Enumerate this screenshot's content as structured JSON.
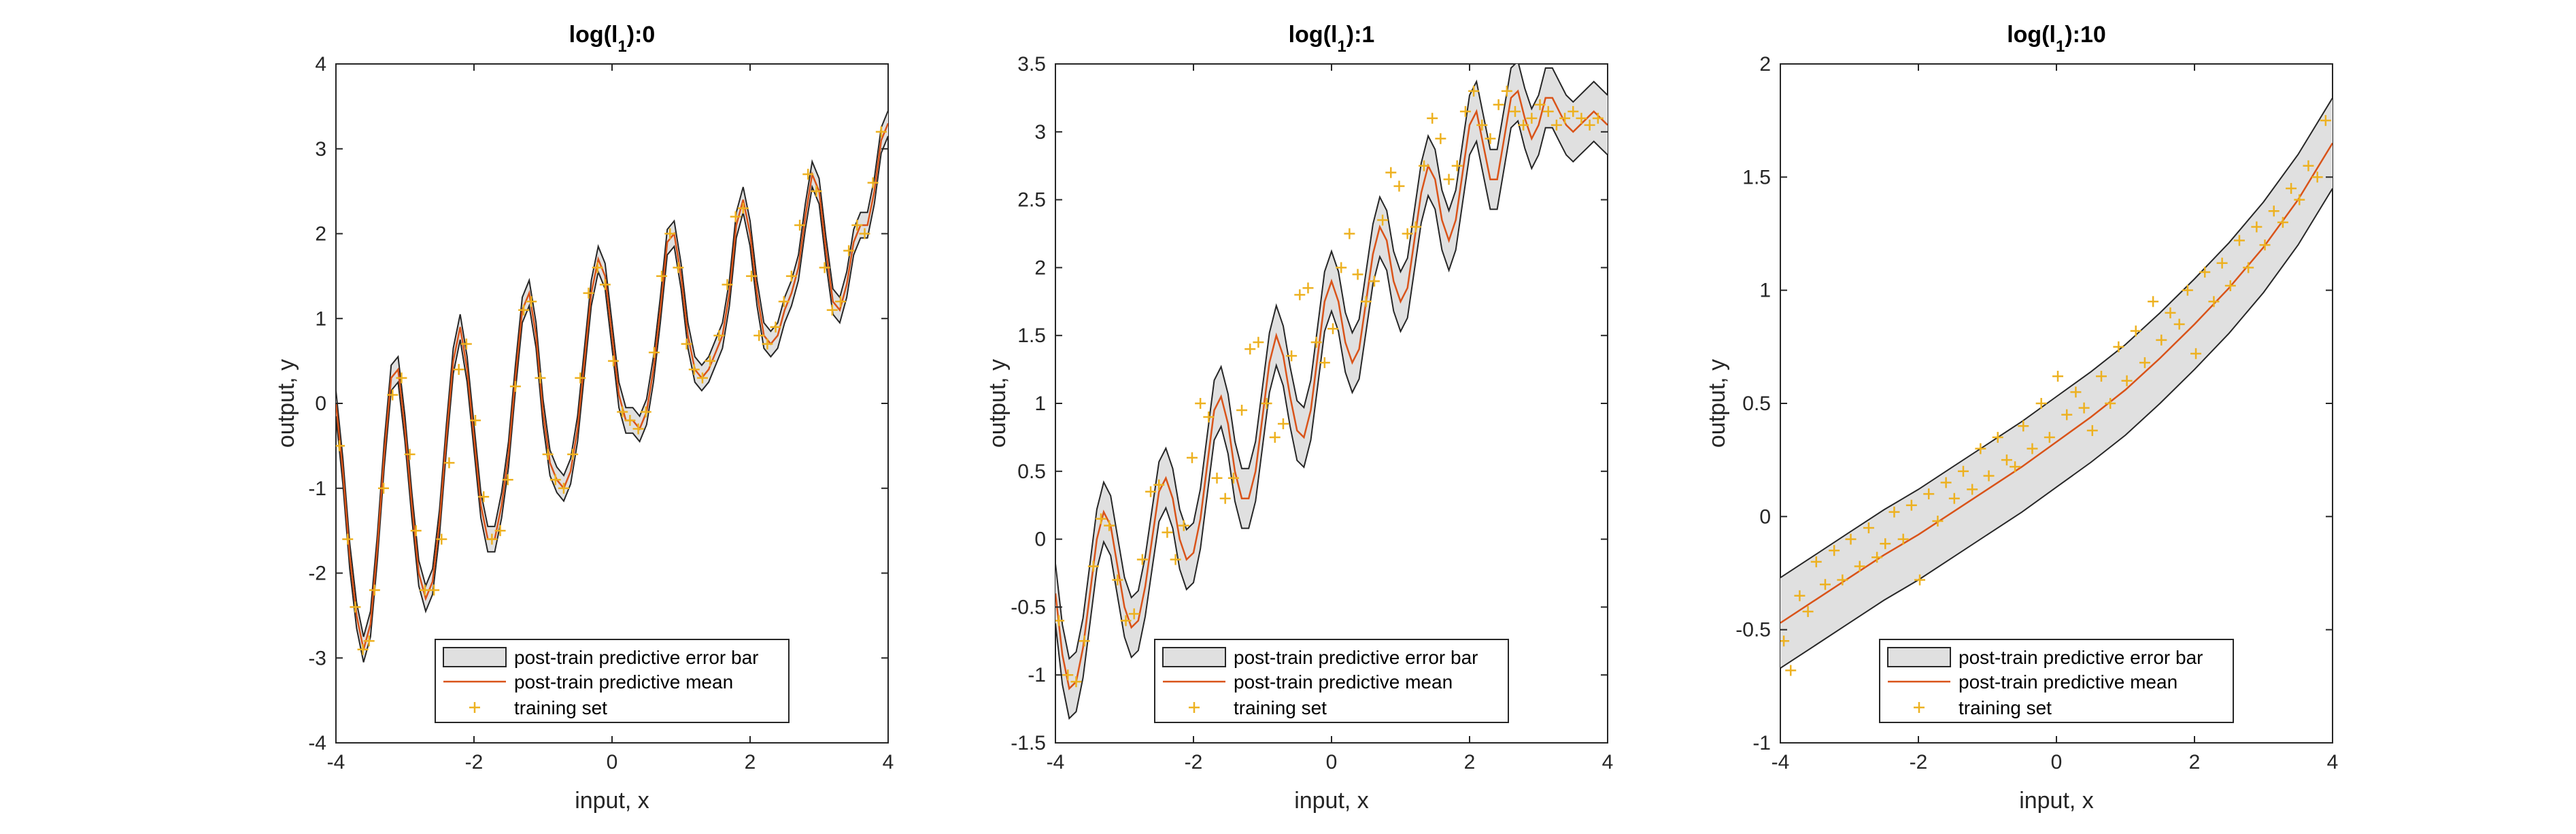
{
  "figure": {
    "legend": {
      "errorbar_label": "post-train predictive error bar",
      "mean_label": "post-train predictive mean",
      "training_label": "training set",
      "placement": "bottom-center"
    }
  },
  "colors": {
    "band_fill": "#e0e0e0",
    "band_edge": "#262626",
    "mean": "#d95319",
    "training": "#edb120",
    "axes": "#262626"
  },
  "chart_data": [
    {
      "type": "line",
      "title_prefix": "log(l",
      "title_sub": "1",
      "title_suffix": "):0",
      "xlabel": "input, x",
      "ylabel": "output, y",
      "xlim": [
        -4,
        4
      ],
      "ylim": [
        -4,
        4
      ],
      "xticks": [
        -4,
        -2,
        0,
        2,
        4
      ],
      "yticks": [
        -4,
        -3,
        -2,
        -1,
        0,
        1,
        2,
        3,
        4
      ],
      "grid": false,
      "error_band_halfwidth": 0.15,
      "series": [
        {
          "name": "post-train predictive mean",
          "x": [
            -4.0,
            -3.9,
            -3.8,
            -3.7,
            -3.6,
            -3.5,
            -3.4,
            -3.3,
            -3.2,
            -3.1,
            -3.0,
            -2.9,
            -2.8,
            -2.7,
            -2.6,
            -2.5,
            -2.4,
            -2.3,
            -2.2,
            -2.1,
            -2.0,
            -1.9,
            -1.8,
            -1.7,
            -1.6,
            -1.5,
            -1.4,
            -1.3,
            -1.2,
            -1.1,
            -1.0,
            -0.9,
            -0.8,
            -0.7,
            -0.6,
            -0.5,
            -0.4,
            -0.3,
            -0.2,
            -0.1,
            0.0,
            0.1,
            0.2,
            0.3,
            0.4,
            0.5,
            0.6,
            0.7,
            0.8,
            0.9,
            1.0,
            1.1,
            1.2,
            1.3,
            1.4,
            1.5,
            1.6,
            1.7,
            1.8,
            1.9,
            2.0,
            2.1,
            2.2,
            2.3,
            2.4,
            2.5,
            2.6,
            2.7,
            2.8,
            2.9,
            3.0,
            3.1,
            3.2,
            3.3,
            3.4,
            3.5,
            3.6,
            3.7,
            3.8,
            3.9,
            4.0
          ],
          "y": [
            0.0,
            -0.8,
            -1.8,
            -2.5,
            -2.9,
            -2.6,
            -1.7,
            -0.6,
            0.3,
            0.4,
            -0.3,
            -1.2,
            -2.0,
            -2.3,
            -2.1,
            -1.4,
            -0.4,
            0.5,
            0.9,
            0.4,
            -0.4,
            -1.2,
            -1.6,
            -1.6,
            -1.2,
            -0.6,
            0.3,
            1.1,
            1.3,
            0.8,
            -0.1,
            -0.7,
            -0.9,
            -1.0,
            -0.8,
            -0.3,
            0.5,
            1.3,
            1.7,
            1.5,
            0.8,
            0.1,
            -0.2,
            -0.2,
            -0.3,
            -0.1,
            0.4,
            1.1,
            1.9,
            2.0,
            1.5,
            0.8,
            0.4,
            0.3,
            0.4,
            0.6,
            0.8,
            1.3,
            2.1,
            2.4,
            2.0,
            1.3,
            0.8,
            0.7,
            0.8,
            1.1,
            1.3,
            1.6,
            2.2,
            2.7,
            2.5,
            1.8,
            1.2,
            1.1,
            1.4,
            1.9,
            2.1,
            2.1,
            2.5,
            3.1,
            3.3
          ]
        },
        {
          "name": "training set",
          "x": [
            -3.95,
            -3.83,
            -3.72,
            -3.61,
            -3.52,
            -3.44,
            -3.31,
            -3.18,
            -3.05,
            -2.93,
            -2.84,
            -2.71,
            -2.58,
            -2.47,
            -2.36,
            -2.22,
            -2.11,
            -1.98,
            -1.86,
            -1.74,
            -1.62,
            -1.51,
            -1.4,
            -1.28,
            -1.17,
            -1.04,
            -0.93,
            -0.82,
            -0.7,
            -0.57,
            -0.46,
            -0.34,
            -0.21,
            -0.1,
            0.02,
            0.15,
            0.26,
            0.38,
            0.49,
            0.61,
            0.72,
            0.84,
            0.96,
            1.08,
            1.19,
            1.31,
            1.42,
            1.55,
            1.67,
            1.79,
            1.9,
            2.02,
            2.13,
            2.25,
            2.37,
            2.49,
            2.6,
            2.72,
            2.84,
            2.96,
            3.08,
            3.19,
            3.31,
            3.43,
            3.55,
            3.66,
            3.78,
            3.9
          ],
          "y": [
            -0.5,
            -1.6,
            -2.4,
            -2.9,
            -2.8,
            -2.2,
            -1.0,
            0.1,
            0.3,
            -0.6,
            -1.5,
            -2.2,
            -2.2,
            -1.6,
            -0.7,
            0.4,
            0.7,
            -0.2,
            -1.1,
            -1.6,
            -1.5,
            -0.9,
            0.2,
            1.1,
            1.2,
            0.3,
            -0.6,
            -0.9,
            -1.0,
            -0.6,
            0.3,
            1.3,
            1.6,
            1.4,
            0.5,
            -0.1,
            -0.2,
            -0.3,
            -0.1,
            0.6,
            1.5,
            2.0,
            1.6,
            0.7,
            0.4,
            0.3,
            0.5,
            0.8,
            1.4,
            2.2,
            2.3,
            1.5,
            0.8,
            0.7,
            0.9,
            1.2,
            1.5,
            2.1,
            2.7,
            2.5,
            1.6,
            1.1,
            1.2,
            1.8,
            2.1,
            2.0,
            2.6,
            3.2
          ]
        }
      ]
    },
    {
      "type": "line",
      "title_prefix": "log(l",
      "title_sub": "1",
      "title_suffix": "):1",
      "xlabel": "input, x",
      "ylabel": "output, y",
      "xlim": [
        -4,
        4
      ],
      "ylim": [
        -1.5,
        3.5
      ],
      "xticks": [
        -4,
        -2,
        0,
        2,
        4
      ],
      "yticks": [
        -1.5,
        -1,
        -0.5,
        0,
        0.5,
        1,
        1.5,
        2,
        2.5,
        3,
        3.5
      ],
      "grid": false,
      "error_band_halfwidth": 0.22,
      "series": [
        {
          "name": "post-train predictive mean",
          "x": [
            -4.0,
            -3.9,
            -3.8,
            -3.7,
            -3.6,
            -3.5,
            -3.4,
            -3.3,
            -3.2,
            -3.1,
            -3.0,
            -2.9,
            -2.8,
            -2.7,
            -2.6,
            -2.5,
            -2.4,
            -2.3,
            -2.2,
            -2.1,
            -2.0,
            -1.9,
            -1.8,
            -1.7,
            -1.6,
            -1.5,
            -1.4,
            -1.3,
            -1.2,
            -1.1,
            -1.0,
            -0.9,
            -0.8,
            -0.7,
            -0.6,
            -0.5,
            -0.4,
            -0.3,
            -0.2,
            -0.1,
            0.0,
            0.1,
            0.2,
            0.3,
            0.4,
            0.5,
            0.6,
            0.7,
            0.8,
            0.9,
            1.0,
            1.1,
            1.2,
            1.3,
            1.4,
            1.5,
            1.6,
            1.7,
            1.8,
            1.9,
            2.0,
            2.1,
            2.2,
            2.3,
            2.4,
            2.5,
            2.6,
            2.7,
            2.8,
            2.9,
            3.0,
            3.1,
            3.2,
            3.3,
            3.4,
            3.5,
            3.6,
            3.7,
            3.8,
            3.9,
            4.0
          ],
          "y": [
            -0.4,
            -0.85,
            -1.1,
            -1.05,
            -0.8,
            -0.4,
            0.0,
            0.2,
            0.1,
            -0.2,
            -0.5,
            -0.65,
            -0.6,
            -0.35,
            0.0,
            0.35,
            0.45,
            0.3,
            0.0,
            -0.15,
            -0.1,
            0.15,
            0.55,
            0.95,
            1.05,
            0.85,
            0.5,
            0.3,
            0.3,
            0.5,
            0.9,
            1.3,
            1.5,
            1.35,
            1.05,
            0.8,
            0.75,
            0.95,
            1.35,
            1.75,
            1.9,
            1.75,
            1.45,
            1.3,
            1.4,
            1.75,
            2.1,
            2.3,
            2.2,
            1.9,
            1.75,
            1.85,
            2.2,
            2.55,
            2.75,
            2.65,
            2.35,
            2.2,
            2.35,
            2.7,
            3.05,
            3.15,
            2.9,
            2.65,
            2.65,
            2.95,
            3.25,
            3.3,
            3.1,
            2.95,
            3.05,
            3.25,
            3.25,
            3.15,
            3.05,
            3.0,
            3.05,
            3.1,
            3.15,
            3.1,
            3.05
          ]
        },
        {
          "name": "training set",
          "x": [
            -3.95,
            -3.82,
            -3.7,
            -3.58,
            -3.45,
            -3.34,
            -3.22,
            -3.1,
            -2.98,
            -2.86,
            -2.74,
            -2.62,
            -2.5,
            -2.38,
            -2.26,
            -2.14,
            -2.02,
            -1.9,
            -1.78,
            -1.66,
            -1.54,
            -1.42,
            -1.3,
            -1.18,
            -1.06,
            -0.94,
            -0.82,
            -0.7,
            -0.58,
            -0.46,
            -0.34,
            -0.22,
            -0.1,
            0.02,
            0.14,
            0.26,
            0.38,
            0.5,
            0.62,
            0.74,
            0.86,
            0.98,
            1.1,
            1.22,
            1.34,
            1.46,
            1.58,
            1.7,
            1.82,
            1.94,
            2.06,
            2.18,
            2.3,
            2.42,
            2.54,
            2.66,
            2.78,
            2.9,
            3.02,
            3.14,
            3.26,
            3.38,
            3.5,
            3.62,
            3.74,
            3.86
          ],
          "y": [
            -0.6,
            -1.0,
            -1.05,
            -0.75,
            -0.2,
            0.15,
            0.1,
            -0.3,
            -0.6,
            -0.55,
            -0.15,
            0.35,
            0.4,
            0.05,
            -0.15,
            0.1,
            0.6,
            1.0,
            0.9,
            0.45,
            0.3,
            0.45,
            0.95,
            1.4,
            1.45,
            1.0,
            0.75,
            0.85,
            1.35,
            1.8,
            1.85,
            1.45,
            1.3,
            1.55,
            2.0,
            2.25,
            1.95,
            1.75,
            1.9,
            2.35,
            2.7,
            2.6,
            2.25,
            2.3,
            2.75,
            3.1,
            2.95,
            2.65,
            2.75,
            3.15,
            3.3,
            3.05,
            2.95,
            3.2,
            3.3,
            3.15,
            3.05,
            3.1,
            3.2,
            3.15,
            3.05,
            3.1,
            3.15,
            3.1,
            3.05,
            3.1
          ]
        }
      ]
    },
    {
      "type": "line",
      "title_prefix": "log(l",
      "title_sub": "1",
      "title_suffix": "):10",
      "xlabel": "input, x",
      "ylabel": "output, y",
      "xlim": [
        -4,
        4
      ],
      "ylim": [
        -1,
        2
      ],
      "xticks": [
        -4,
        -2,
        0,
        2,
        4
      ],
      "yticks": [
        -1,
        -0.5,
        0,
        0.5,
        1,
        1.5,
        2
      ],
      "grid": false,
      "error_band_halfwidth": 0.2,
      "series": [
        {
          "name": "post-train predictive mean",
          "x": [
            -4.0,
            -3.5,
            -3.0,
            -2.5,
            -2.0,
            -1.5,
            -1.0,
            -0.5,
            0.0,
            0.5,
            1.0,
            1.5,
            2.0,
            2.5,
            3.0,
            3.5,
            4.0
          ],
          "y": [
            -0.47,
            -0.37,
            -0.27,
            -0.17,
            -0.08,
            0.02,
            0.12,
            0.22,
            0.33,
            0.44,
            0.56,
            0.7,
            0.85,
            1.01,
            1.19,
            1.4,
            1.65
          ]
        },
        {
          "name": "training set",
          "x": [
            -3.95,
            -3.85,
            -3.72,
            -3.6,
            -3.48,
            -3.35,
            -3.22,
            -3.1,
            -2.98,
            -2.85,
            -2.72,
            -2.6,
            -2.48,
            -2.35,
            -2.22,
            -2.1,
            -1.98,
            -1.85,
            -1.72,
            -1.6,
            -1.48,
            -1.35,
            -1.22,
            -1.1,
            -0.98,
            -0.85,
            -0.72,
            -0.6,
            -0.48,
            -0.35,
            -0.22,
            -0.1,
            0.02,
            0.15,
            0.28,
            0.4,
            0.52,
            0.65,
            0.78,
            0.9,
            1.02,
            1.15,
            1.28,
            1.4,
            1.52,
            1.65,
            1.78,
            1.9,
            2.02,
            2.15,
            2.28,
            2.4,
            2.52,
            2.65,
            2.78,
            2.9,
            3.02,
            3.15,
            3.28,
            3.4,
            3.52,
            3.65,
            3.78,
            3.9
          ],
          "y": [
            -0.55,
            -0.68,
            -0.35,
            -0.42,
            -0.2,
            -0.3,
            -0.15,
            -0.28,
            -0.1,
            -0.22,
            -0.05,
            -0.18,
            -0.12,
            0.02,
            -0.1,
            0.05,
            -0.28,
            0.1,
            -0.02,
            0.15,
            0.08,
            0.2,
            0.12,
            0.3,
            0.18,
            0.35,
            0.25,
            0.22,
            0.4,
            0.3,
            0.5,
            0.35,
            0.62,
            0.45,
            0.55,
            0.48,
            0.38,
            0.62,
            0.5,
            0.75,
            0.6,
            0.82,
            0.68,
            0.95,
            0.78,
            0.9,
            0.85,
            1.0,
            0.72,
            1.08,
            0.95,
            1.12,
            1.02,
            1.22,
            1.1,
            1.28,
            1.2,
            1.35,
            1.3,
            1.45,
            1.4,
            1.55,
            1.5,
            1.75
          ]
        }
      ]
    }
  ]
}
